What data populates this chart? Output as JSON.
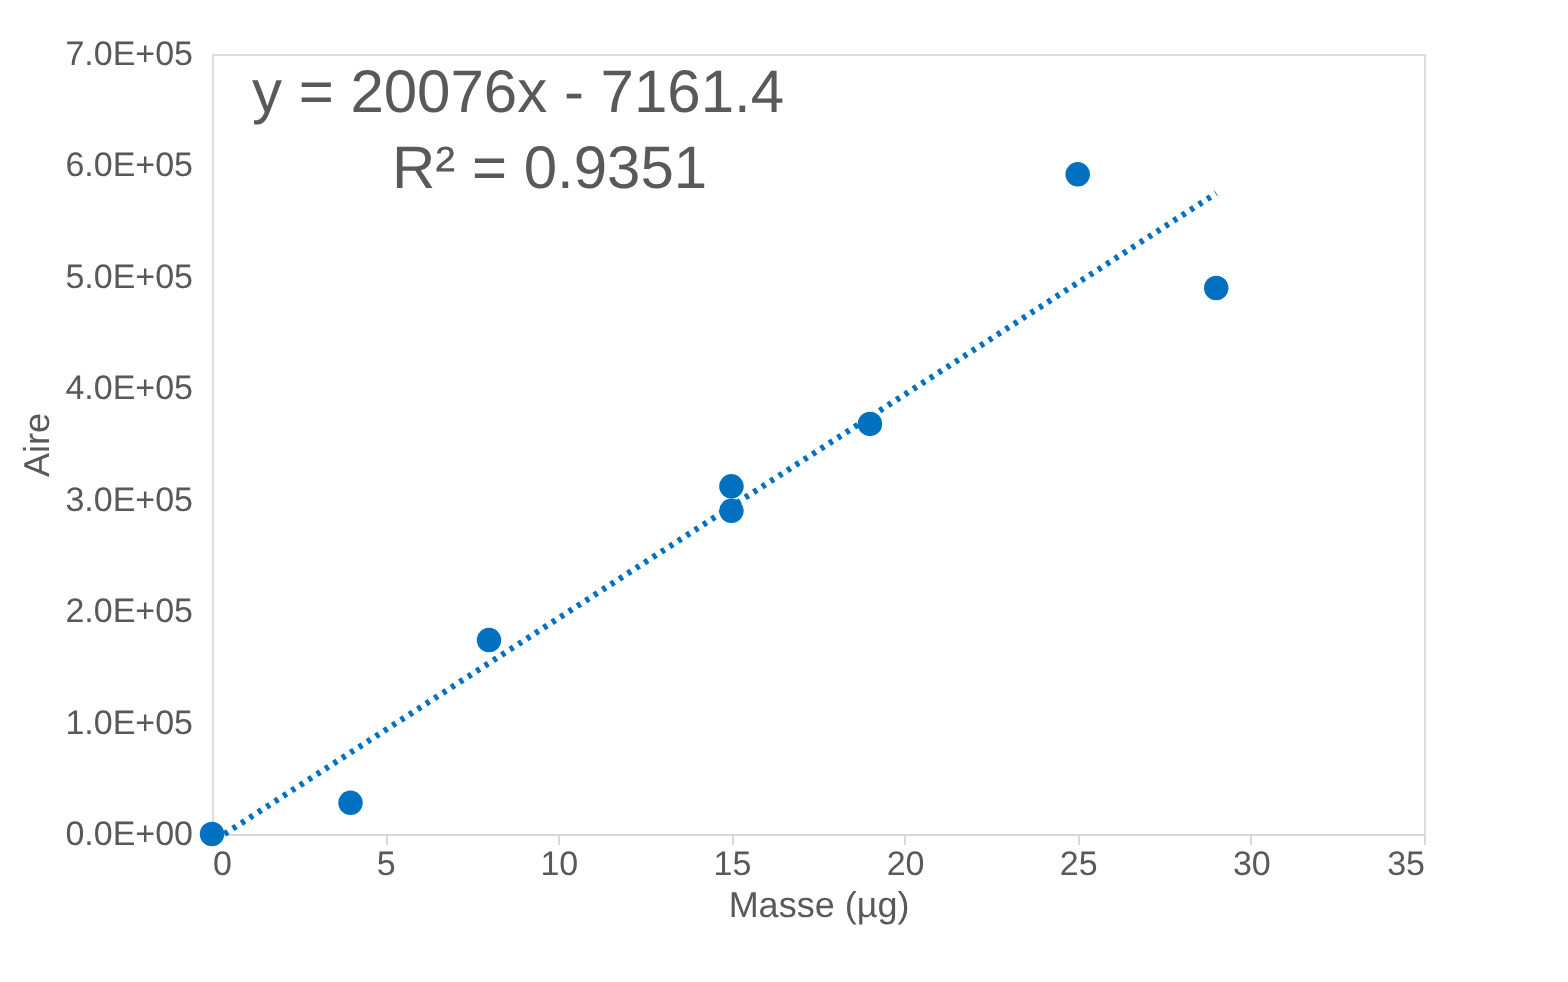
{
  "chart_data": {
    "type": "scatter",
    "xlabel": "Masse (µg)",
    "ylabel": "Aire",
    "annotations": [
      "y = 20076x - 7161.4",
      "R² = 0.9351"
    ],
    "xlim": [
      0,
      35
    ],
    "xticks": [
      0,
      5,
      10,
      15,
      20,
      25,
      30,
      35
    ],
    "ylim": [
      0,
      700000
    ],
    "yticks": [
      {
        "value": 0,
        "label": "0.0E+00"
      },
      {
        "value": 100000,
        "label": "1.0E+05"
      },
      {
        "value": 200000,
        "label": "2.0E+05"
      },
      {
        "value": 300000,
        "label": "3.0E+05"
      },
      {
        "value": 400000,
        "label": "4.0E+05"
      },
      {
        "value": 500000,
        "label": "5.0E+05"
      },
      {
        "value": 600000,
        "label": "6.0E+05"
      },
      {
        "value": 700000,
        "label": "7.0E+05"
      }
    ],
    "grid": false,
    "series": [
      {
        "color": "#0070c0",
        "marker": "circle",
        "x": [
          0,
          4,
          8,
          15,
          15,
          19,
          25,
          29
        ],
        "values": [
          0,
          28000,
          174000,
          312000,
          290000,
          368000,
          592000,
          490000
        ]
      },
      {
        "type": "line",
        "color": "#0070c0",
        "marker": "none",
        "line_style": "dotted",
        "x": [
          0.36,
          29
        ],
        "values": [
          0,
          575000
        ]
      }
    ]
  }
}
